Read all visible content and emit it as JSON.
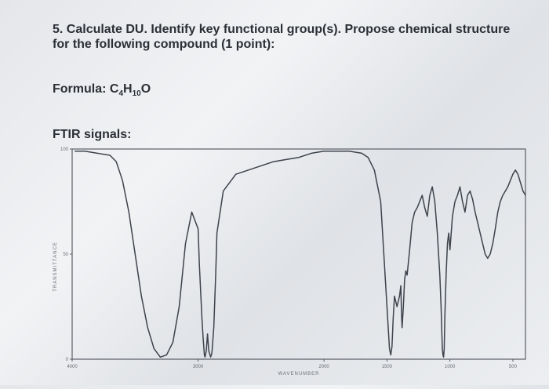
{
  "question": {
    "title": "5. Calculate DU. Identify key functional group(s). Propose chemical structure for the following compound (1 point):",
    "formula_prefix": "Formula: ",
    "formula_parts": [
      "C",
      "4",
      "H",
      "10",
      "O"
    ],
    "ftir_label": "FTIR signals:"
  },
  "chart_data": {
    "type": "line",
    "title": "",
    "xlabel": "WAVENUMBER",
    "ylabel": "TRANSMITTANCE",
    "xlim": [
      4000,
      400
    ],
    "ylim": [
      0,
      100
    ],
    "x_ticks": [
      "4000",
      "3000",
      "2000",
      "1500",
      "1000",
      "500"
    ],
    "y_ticks": [
      "100",
      "50",
      "0"
    ],
    "grid": false,
    "series": [
      {
        "x": [
          3980,
          3900,
          3800,
          3700,
          3650,
          3600,
          3550,
          3500,
          3450,
          3400,
          3350,
          3300,
          3250,
          3200,
          3150,
          3100,
          3050,
          3000,
          2990,
          2970,
          2960,
          2950,
          2945,
          2935,
          2925,
          2915,
          2900,
          2890,
          2875,
          2860,
          2850,
          2800,
          2700,
          2600,
          2500,
          2400,
          2300,
          2200,
          2100,
          2000,
          1900,
          1800,
          1700,
          1650,
          1600,
          1550,
          1500,
          1480,
          1470,
          1460,
          1450,
          1440,
          1420,
          1400,
          1390,
          1385,
          1380,
          1370,
          1360,
          1350,
          1340,
          1320,
          1300,
          1280,
          1260,
          1240,
          1220,
          1200,
          1180,
          1160,
          1140,
          1120,
          1100,
          1080,
          1070,
          1060,
          1055,
          1050,
          1045,
          1040,
          1030,
          1020,
          1010,
          1000,
          980,
          960,
          940,
          920,
          900,
          880,
          860,
          840,
          820,
          800,
          780,
          760,
          740,
          720,
          700,
          680,
          660,
          640,
          620,
          600,
          580,
          560,
          540,
          520,
          500,
          480,
          460,
          440,
          420,
          400
        ],
        "y": [
          99,
          99,
          98,
          97,
          94,
          85,
          70,
          50,
          30,
          15,
          5,
          1,
          2,
          8,
          25,
          55,
          70,
          62,
          45,
          20,
          10,
          2,
          1,
          4,
          12,
          4,
          1,
          3,
          15,
          40,
          60,
          80,
          88,
          90,
          92,
          94,
          95,
          96,
          98,
          99,
          99,
          99,
          98,
          96,
          90,
          75,
          25,
          5,
          2,
          6,
          20,
          30,
          25,
          30,
          35,
          22,
          15,
          25,
          38,
          42,
          40,
          52,
          65,
          70,
          72,
          75,
          78,
          72,
          68,
          78,
          82,
          75,
          60,
          40,
          25,
          5,
          2,
          1,
          5,
          20,
          40,
          55,
          60,
          52,
          68,
          75,
          78,
          82,
          75,
          70,
          78,
          80,
          76,
          70,
          65,
          60,
          55,
          50,
          48,
          50,
          55,
          62,
          70,
          75,
          78,
          80,
          82,
          85,
          88,
          90,
          88,
          84,
          80,
          78
        ]
      }
    ]
  }
}
